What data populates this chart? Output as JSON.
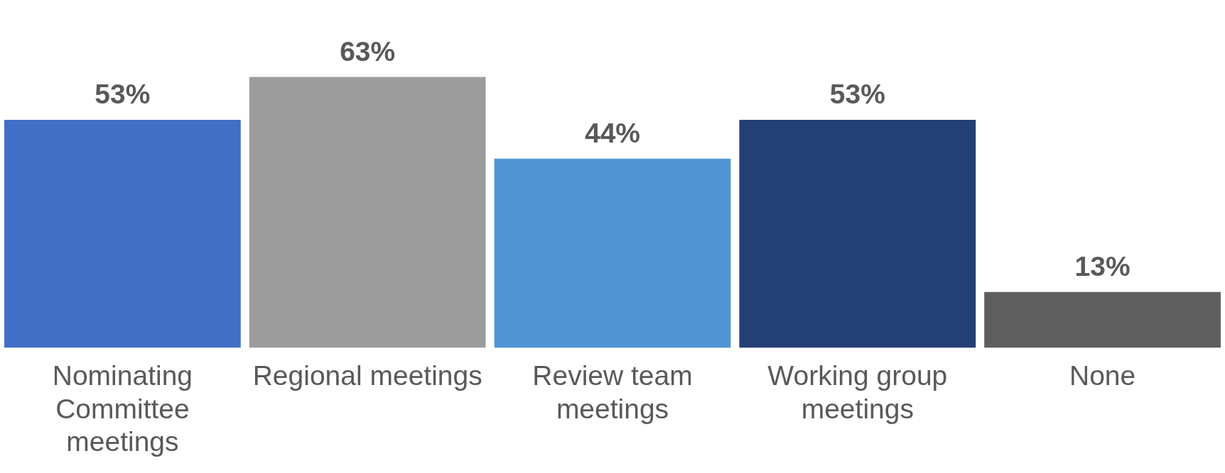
{
  "chart_data": {
    "type": "bar",
    "categories": [
      "Nominating Committee meetings",
      "Regional meetings",
      "Review team meetings",
      "Working group meetings",
      "None"
    ],
    "values": [
      53,
      63,
      44,
      53,
      13
    ],
    "colors": [
      "#416fc6",
      "#9c9c9c",
      "#4f95d4",
      "#243f75",
      "#5e5e5e"
    ],
    "value_labels": [
      "53%",
      "63%",
      "44%",
      "53%",
      "13%"
    ],
    "tick_labels": "x",
    "grid": false,
    "legend": false
  }
}
